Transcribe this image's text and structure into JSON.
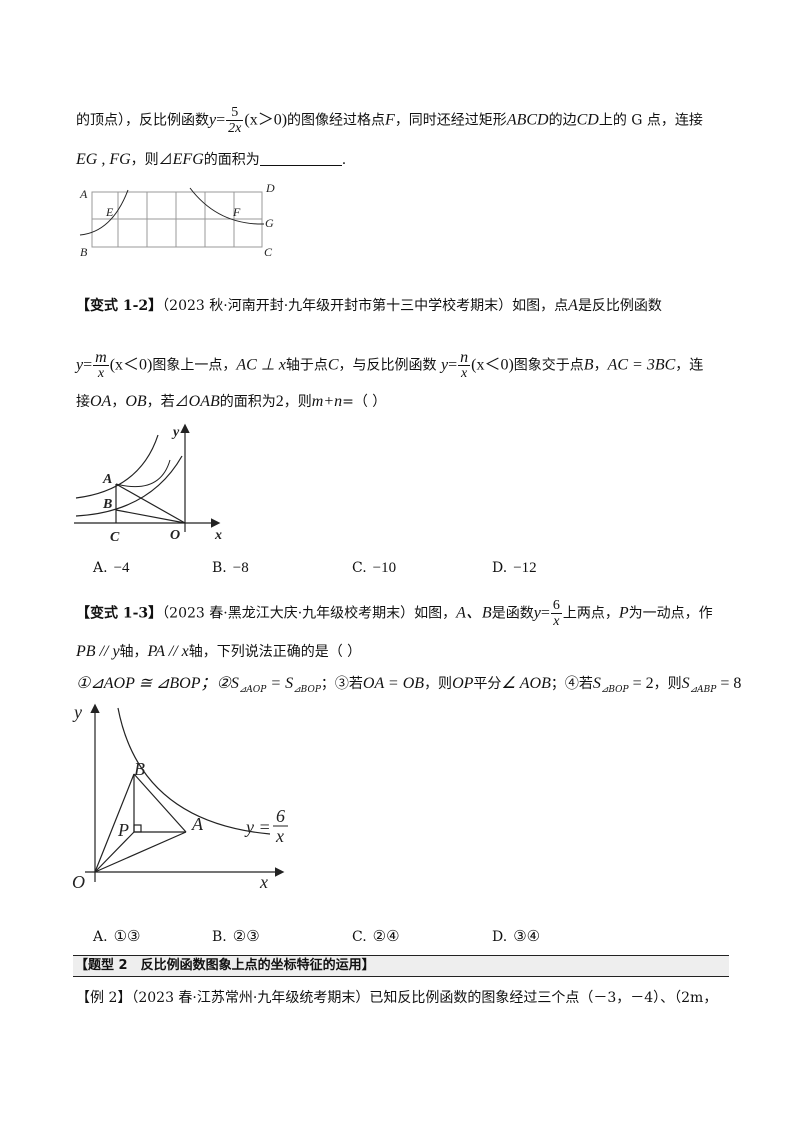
{
  "p1": {
    "l1a": "的顶点），反比例函数",
    "y": "y",
    "eq": "=",
    "frac_num": "5",
    "frac_den": "2x",
    "cond": "(x＞0)",
    "l1b": "的图像经过格点",
    "F": "F",
    "l1c": "，同时还经过矩形",
    "ABCD": "ABCD",
    "l1d": "的边",
    "CD": "CD",
    "l1e": "上的 G 点，连接",
    "EGFG": "EG , FG",
    "l2a": "，则",
    "tri": "⊿",
    "EFG": "EFG",
    "l2b": "的面积为",
    "l2c": "."
  },
  "fig1": {
    "labels": [
      "A",
      "B",
      "C",
      "D",
      "E",
      "F",
      "G"
    ]
  },
  "p2": {
    "tag": "【变式 1-2】",
    "src": "（2023 秋·河南开封·九年级开封市第十三中学校考期末）如图，点",
    "A": "A",
    "t1": "是反比例函数",
    "y": "y",
    "m": "m",
    "x": "x",
    "cond": "(x＜0)",
    "t2": "图象上一点，",
    "ACx": "AC ⊥ x",
    "t3": "轴于点",
    "C": "C",
    "t4": "，与反比例函数",
    "n": "n",
    "t5": "图象交于点",
    "B": "B",
    "t6": "，",
    "AC3BC": "AC = 3BC",
    "t7": "，连",
    "l3a": "接",
    "OA": "OA",
    "l3b": "，",
    "OB": "OB",
    "l3c": "，若",
    "OAB": "OAB",
    "l3d": "的面积为",
    "two": "2",
    "l3e": "，则",
    "mn": "m+n",
    "l3f": "=（     ）"
  },
  "fig2": {
    "labels": [
      "y",
      "A",
      "B",
      "C",
      "O",
      "x"
    ]
  },
  "opts2": [
    {
      "k": "A.",
      "v": "−4"
    },
    {
      "k": "B.",
      "v": "−8"
    },
    {
      "k": "C.",
      "v": "−10"
    },
    {
      "k": "D.",
      "v": "−12"
    }
  ],
  "p3": {
    "tag": "【变式 1-3】",
    "src": "（2023 春·黑龙江大庆·九年级校考期末）如图，",
    "AB": "A、B",
    "t1": "是函数",
    "y": "y",
    "num": "6",
    "den": "x",
    "t2": "上两点，",
    "P": "P",
    "t3": "为一动点，作",
    "l2a": "PB // y",
    "l2b": "轴，",
    "l2c": "PA // x",
    "l2d": "轴，下列说法正确的是（       ）",
    "s1": "①⊿AOP ≅ ⊿BOP",
    "s2": "；②S",
    "sub1": "⊿AOP",
    "eq": " = S",
    "sub2": "⊿BOP",
    "s3": "；③若",
    "s3b": "OA = OB",
    "s3c": "，则",
    "s3d": "OP",
    "s3e": "平分",
    "s3f": "∠ AOB",
    "s4": "；④若",
    "s4b": "S",
    "sub3": "⊿BOP",
    "s4c": " = 2",
    "s4d": "，则",
    "s4e": "S",
    "sub4": "⊿ABP",
    "s4f": " = 8"
  },
  "fig3": {
    "labels": [
      "y",
      "B",
      "P",
      "A",
      "O",
      "x"
    ],
    "curve_y": "y =",
    "curve_num": "6",
    "curve_den": "x"
  },
  "opts3": [
    {
      "k": "A.",
      "v": "①③"
    },
    {
      "k": "B.",
      "v": "②③"
    },
    {
      "k": "C.",
      "v": "②④"
    },
    {
      "k": "D.",
      "v": "③④"
    }
  ],
  "section": "【题型 2　反比例函数图象上点的坐标特征的运用】",
  "ex2": "【例 2】（2023 春·江苏常州·九年级统考期末）已知反比例函数的图象经过三个点（－3，－4）、（2m，"
}
